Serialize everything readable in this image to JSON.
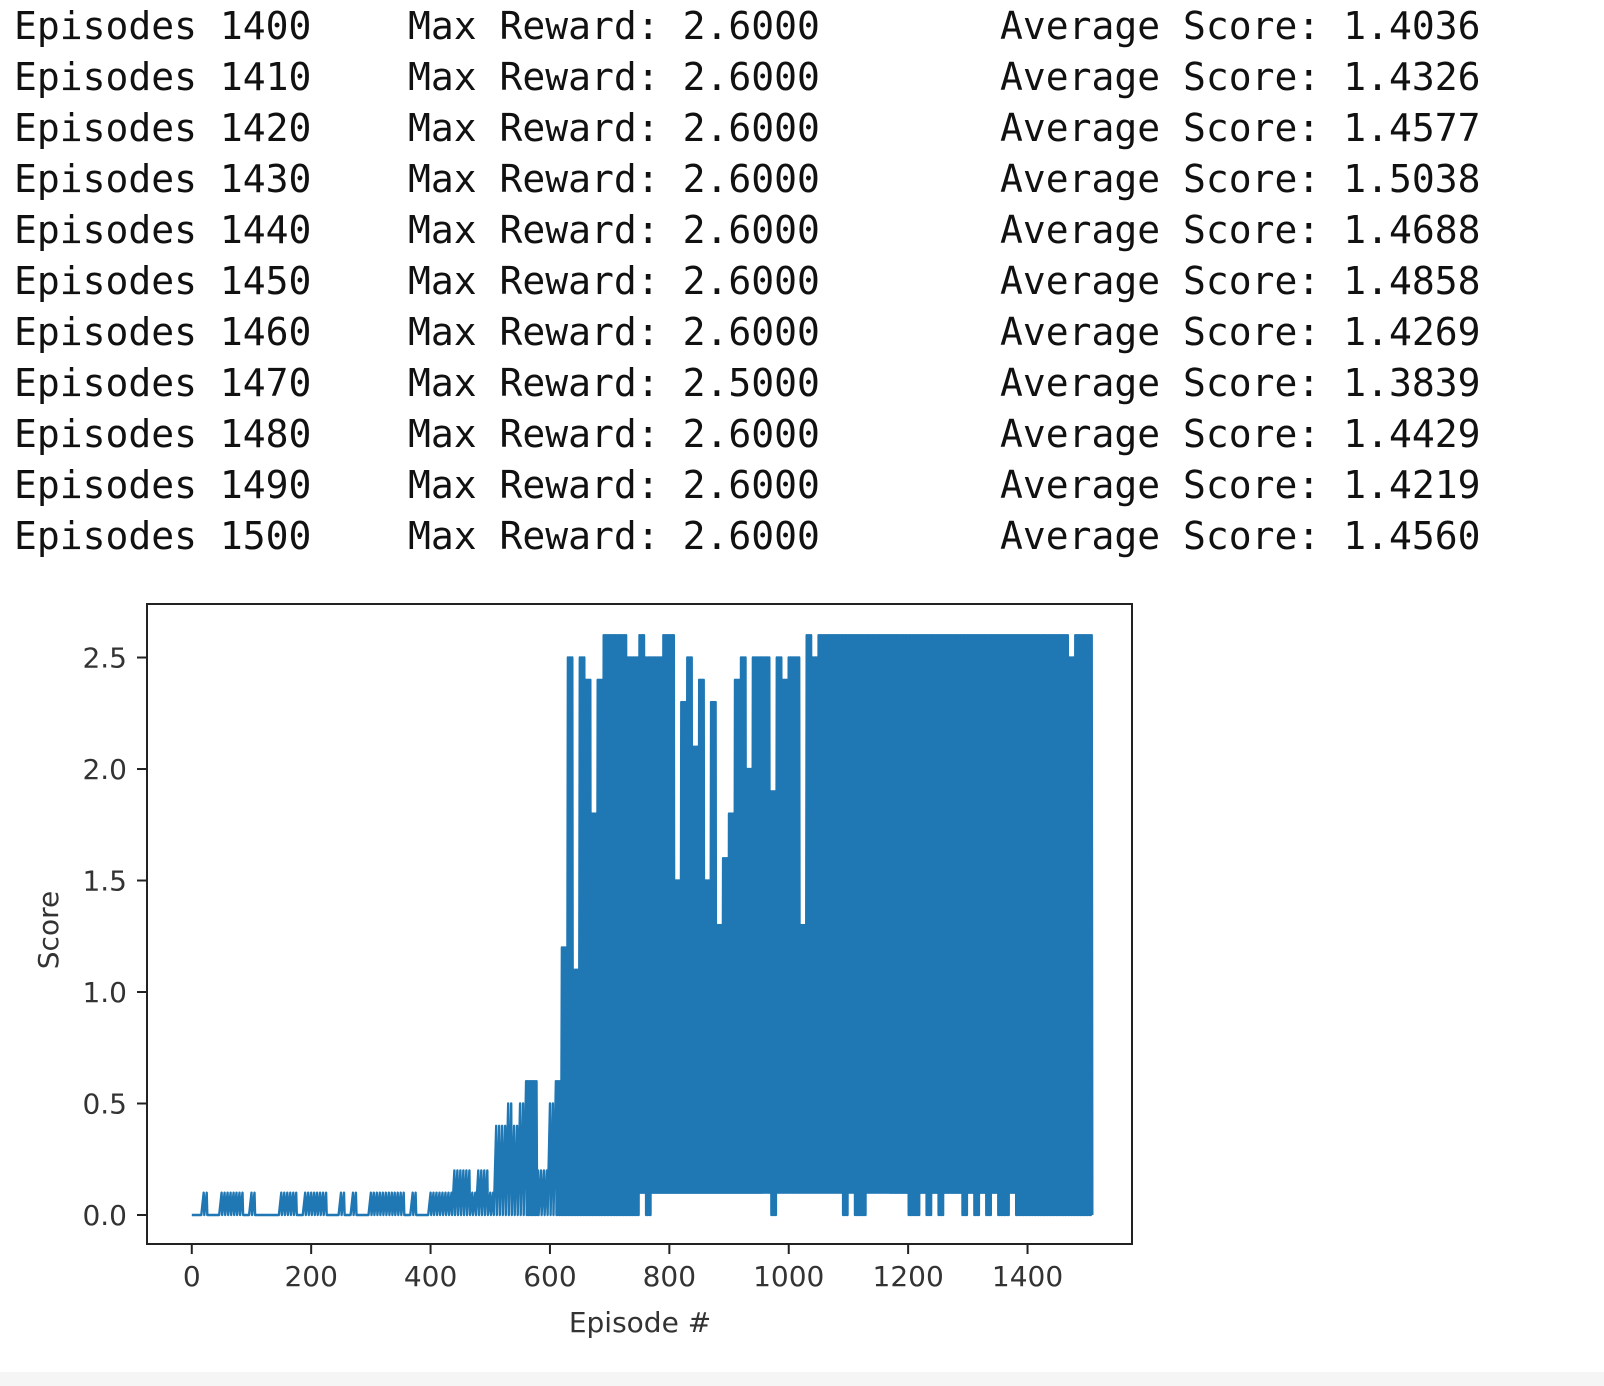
{
  "log": {
    "ep_label": "Episodes",
    "max_label": "Max Reward:",
    "avg_label": "Average Score:",
    "rows": [
      {
        "episode": "1400",
        "max_reward": "2.6000",
        "avg_score": "1.4036"
      },
      {
        "episode": "1410",
        "max_reward": "2.6000",
        "avg_score": "1.4326"
      },
      {
        "episode": "1420",
        "max_reward": "2.6000",
        "avg_score": "1.4577"
      },
      {
        "episode": "1430",
        "max_reward": "2.6000",
        "avg_score": "1.5038"
      },
      {
        "episode": "1440",
        "max_reward": "2.6000",
        "avg_score": "1.4688"
      },
      {
        "episode": "1450",
        "max_reward": "2.6000",
        "avg_score": "1.4858"
      },
      {
        "episode": "1460",
        "max_reward": "2.6000",
        "avg_score": "1.4269"
      },
      {
        "episode": "1470",
        "max_reward": "2.5000",
        "avg_score": "1.3839"
      },
      {
        "episode": "1480",
        "max_reward": "2.6000",
        "avg_score": "1.4429"
      },
      {
        "episode": "1490",
        "max_reward": "2.6000",
        "avg_score": "1.4219"
      },
      {
        "episode": "1500",
        "max_reward": "2.6000",
        "avg_score": "1.4560"
      }
    ]
  },
  "chart_data": {
    "type": "line",
    "title": "",
    "xlabel": "Episode #",
    "ylabel": "Score",
    "xlim": [
      -75,
      1575
    ],
    "ylim": [
      -0.13,
      2.74
    ],
    "xticks": [
      0,
      200,
      400,
      600,
      800,
      1000,
      1200,
      1400
    ],
    "yticks": [
      0.0,
      0.5,
      1.0,
      1.5,
      2.0,
      2.5
    ],
    "ytick_labels": [
      "0.0",
      "0.5",
      "1.0",
      "1.5",
      "2.0",
      "2.5"
    ],
    "grid": false,
    "line_color": "#1f77b4",
    "series": [
      {
        "x": [
          0,
          10,
          20,
          30,
          40,
          50,
          60,
          70,
          80,
          90,
          100,
          110,
          120,
          130,
          140,
          150,
          160,
          170,
          180,
          190,
          200,
          210,
          220,
          230,
          240,
          250,
          260,
          270,
          280,
          290,
          300,
          310,
          320,
          330,
          340,
          350,
          360,
          370,
          380,
          390,
          400,
          410,
          420,
          430,
          440,
          450,
          460,
          470,
          480,
          490,
          500,
          510,
          520,
          530,
          540,
          550,
          560,
          570,
          580,
          590,
          600,
          610,
          620,
          630,
          640,
          650,
          660,
          670,
          680,
          690,
          700,
          710,
          720,
          730,
          740,
          750,
          760,
          770,
          780,
          790,
          800,
          810,
          820,
          830,
          840,
          850,
          860,
          870,
          880,
          890,
          900,
          910,
          920,
          930,
          940,
          950,
          960,
          970,
          980,
          990,
          1000,
          1010,
          1020,
          1030,
          1040,
          1050,
          1060,
          1070,
          1080,
          1090,
          1100,
          1110,
          1120,
          1130,
          1140,
          1150,
          1160,
          1170,
          1180,
          1190,
          1200,
          1210,
          1220,
          1230,
          1240,
          1250,
          1260,
          1270,
          1280,
          1290,
          1300,
          1310,
          1320,
          1330,
          1340,
          1350,
          1360,
          1370,
          1380,
          1390,
          1400,
          1410,
          1420,
          1430,
          1440,
          1450,
          1460,
          1470,
          1480,
          1490,
          1500
        ],
        "min": [
          0,
          0,
          0,
          0,
          0,
          0,
          0,
          0,
          0,
          0,
          0,
          0,
          0,
          0,
          0,
          0,
          0,
          0,
          0,
          0,
          0,
          0,
          0,
          0,
          0,
          0,
          0,
          0,
          0,
          0,
          0,
          0,
          0,
          0,
          0,
          0,
          0,
          0,
          0,
          0,
          0,
          0,
          0,
          0,
          0,
          0,
          0,
          0,
          0,
          0,
          0,
          0,
          0,
          0,
          0,
          0,
          0,
          0,
          0,
          0,
          0,
          0,
          0,
          0,
          0,
          0,
          0,
          0,
          0,
          0,
          0,
          0,
          0,
          0,
          0,
          0.1,
          0,
          0.1,
          0.1,
          0.1,
          0.1,
          0.1,
          0.1,
          0.1,
          0.1,
          0.1,
          0.1,
          0.1,
          0.1,
          0.1,
          0.1,
          0.1,
          0.1,
          0.1,
          0.1,
          0.1,
          0.1,
          0,
          0.1,
          0.1,
          0.1,
          0.1,
          0.1,
          0.1,
          0.1,
          0.1,
          0.1,
          0.1,
          0.1,
          0,
          0.1,
          0,
          0,
          0.1,
          0.1,
          0.1,
          0.1,
          0.1,
          0.1,
          0.1,
          0,
          0,
          0.1,
          0,
          0.1,
          0,
          0.1,
          0.1,
          0.1,
          0,
          0.1,
          0,
          0.1,
          0,
          0.1,
          0,
          0,
          0.1,
          0,
          0,
          0,
          0,
          0,
          0,
          0,
          0,
          0,
          0,
          0,
          0,
          0
        ],
        "max": [
          0,
          0,
          0.1,
          0,
          0,
          0.1,
          0.1,
          0.1,
          0.1,
          0,
          0.1,
          0,
          0,
          0,
          0,
          0.1,
          0.1,
          0.1,
          0,
          0.1,
          0.1,
          0.1,
          0.1,
          0,
          0,
          0.1,
          0,
          0.1,
          0,
          0,
          0.1,
          0.1,
          0.1,
          0.1,
          0.1,
          0.1,
          0,
          0.1,
          0,
          0,
          0.1,
          0.1,
          0.1,
          0.1,
          0.2,
          0.2,
          0.2,
          0.1,
          0.2,
          0.2,
          0.1,
          0.4,
          0.4,
          0.5,
          0.4,
          0.5,
          0.6,
          0.6,
          0.2,
          0.2,
          0.5,
          0.6,
          1.2,
          2.5,
          1.1,
          2.5,
          2.4,
          1.8,
          2.4,
          2.6,
          2.6,
          2.6,
          2.6,
          2.5,
          2.5,
          2.6,
          2.5,
          2.5,
          2.5,
          2.6,
          2.6,
          1.5,
          2.3,
          2.5,
          2.1,
          2.4,
          1.5,
          2.3,
          1.3,
          1.6,
          1.8,
          2.4,
          2.5,
          2.0,
          2.5,
          2.5,
          2.5,
          1.9,
          2.5,
          2.4,
          2.5,
          2.5,
          1.3,
          2.6,
          2.5,
          2.6,
          2.6,
          2.6,
          2.6,
          2.6,
          2.6,
          2.6,
          2.6,
          2.6,
          2.6,
          2.6,
          2.6,
          2.6,
          2.6,
          2.6,
          2.6,
          2.6,
          2.6,
          2.6,
          2.6,
          2.6,
          2.6,
          2.6,
          2.6,
          2.6,
          2.6,
          2.6,
          2.6,
          2.6,
          2.6,
          2.6,
          2.6,
          2.6,
          2.6,
          2.6,
          2.6,
          2.6,
          2.6,
          2.6,
          2.6,
          2.6,
          2.6,
          2.5,
          2.6,
          2.6,
          2.6
        ]
      }
    ]
  }
}
